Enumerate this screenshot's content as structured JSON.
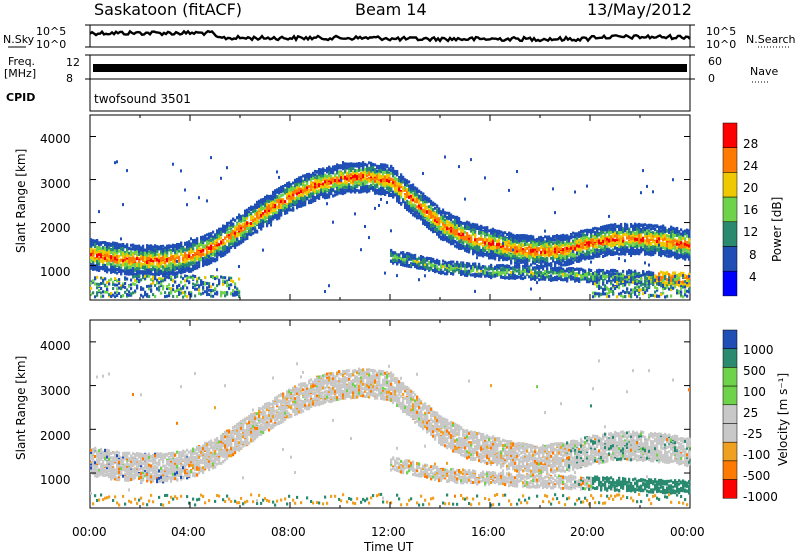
{
  "header": {
    "station": "Saskatoon (fitACF)",
    "beam": "Beam 14",
    "date": "13/May/2012"
  },
  "strips": {
    "nsky_label": "N.Sky",
    "nsky_ticks": [
      "10^5",
      "10^0"
    ],
    "nsearch_label": "N.Search",
    "nsearch_ticks": [
      "10^5",
      "10^0"
    ],
    "freq_label": "Freq.",
    "freq_unit": "[MHz]",
    "freq_ticks": [
      "12",
      "8"
    ],
    "nave_label": "Nave",
    "nave_ticks": [
      "60",
      "0"
    ],
    "cpid_label": "CPID",
    "cpid_value": "twofsound 3501"
  },
  "chart_data": [
    {
      "type": "heatmap",
      "title": "",
      "ylabel": "Slant Range [km]",
      "xlabel": "",
      "ylim": [
        200,
        4500
      ],
      "yticks": [
        "1000",
        "2000",
        "3000",
        "4000"
      ],
      "colorbar": {
        "label": "Power [dB]",
        "ticks": [
          "28",
          "24",
          "20",
          "16",
          "12",
          "8",
          "4"
        ],
        "colors": [
          "#ff0000",
          "#ff7a00",
          "#f0c800",
          "#6ed24a",
          "#2a8a70",
          "#1f4fb4",
          "#0000ff"
        ]
      },
      "echo_bands": [
        {
          "name": "main-band",
          "x": [
            0,
            1,
            2,
            3,
            4,
            5,
            6,
            7,
            8,
            9,
            10,
            11,
            12,
            13,
            14,
            15,
            16,
            17,
            18,
            19,
            20,
            21,
            22,
            23,
            24
          ],
          "y": [
            1300,
            1200,
            1150,
            1150,
            1250,
            1500,
            1900,
            2300,
            2650,
            2900,
            3050,
            3100,
            3000,
            2500,
            2000,
            1700,
            1550,
            1400,
            1350,
            1400,
            1550,
            1650,
            1650,
            1600,
            1500
          ]
        },
        {
          "name": "low-band",
          "x": [
            12,
            14,
            16,
            18,
            20,
            22,
            24
          ],
          "y": [
            1250,
            1000,
            900,
            850,
            800,
            750,
            700
          ]
        }
      ]
    },
    {
      "type": "heatmap",
      "title": "",
      "ylabel": "Slant Range [km]",
      "xlabel": "Time UT",
      "ylim": [
        200,
        4500
      ],
      "yticks": [
        "1000",
        "2000",
        "3000",
        "4000"
      ],
      "xticks": [
        "00:00",
        "04:00",
        "08:00",
        "12:00",
        "16:00",
        "20:00",
        "00:00"
      ],
      "colorbar": {
        "label": "Velocity [m s⁻¹]",
        "ticks": [
          "1000",
          "500",
          "100",
          "25",
          "-25",
          "-100",
          "-500",
          "-1000"
        ],
        "colors": [
          "#1f4fb4",
          "#2a8a70",
          "#6ed24a",
          "#c8c8c8",
          "#c8c8c8",
          "#f0a020",
          "#ff7a00",
          "#ff0000"
        ]
      }
    }
  ]
}
